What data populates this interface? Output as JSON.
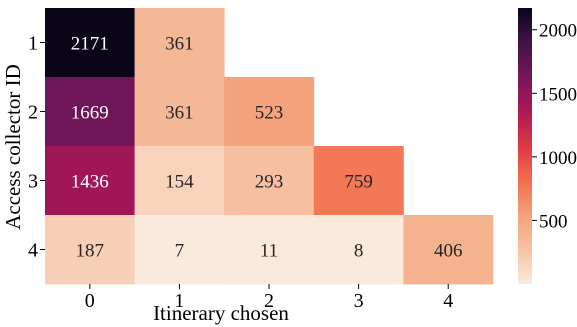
{
  "chart_data": {
    "type": "heatmap",
    "title": "",
    "xlabel": "Itinerary chosen",
    "ylabel": "Access collector ID",
    "x_categories": [
      "0",
      "1",
      "2",
      "3",
      "4"
    ],
    "y_categories": [
      "1",
      "2",
      "3",
      "4"
    ],
    "values": [
      [
        2171,
        361,
        null,
        null,
        null
      ],
      [
        1669,
        361,
        523,
        null,
        null
      ],
      [
        1436,
        154,
        293,
        759,
        null
      ],
      [
        187,
        7,
        11,
        8,
        406
      ]
    ],
    "colorbar": {
      "range": [
        0,
        2171
      ],
      "ticks": [
        500,
        1000,
        1500,
        2000
      ],
      "tick_labels": [
        "500",
        "1000",
        "1500",
        "2000"
      ],
      "colormap": "rocket_r"
    }
  }
}
